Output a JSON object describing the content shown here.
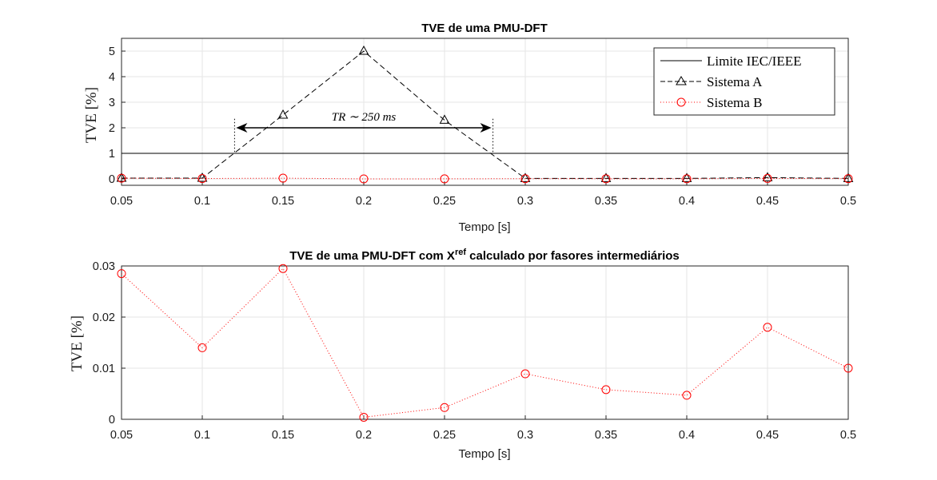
{
  "chart_data": [
    {
      "type": "line",
      "title": "TVE de uma PMU-DFT",
      "xlabel": "Tempo [s]",
      "ylabel": "TVE [%]",
      "xlim": [
        0.05,
        0.5
      ],
      "ylim": [
        -0.25,
        5.5
      ],
      "xticks": [
        "0.05",
        "0.1",
        "0.15",
        "0.2",
        "0.25",
        "0.3",
        "0.35",
        "0.4",
        "0.45",
        "0.5"
      ],
      "yticks": [
        "0",
        "1",
        "2",
        "3",
        "4",
        "5"
      ],
      "grid": true,
      "legend_position": "top-right",
      "series": [
        {
          "name": "Limite IEC/IEEE",
          "style": "solid",
          "color": "#000000",
          "x": [
            0.05,
            0.5
          ],
          "y": [
            1,
            1
          ]
        },
        {
          "name": "Sistema A",
          "style": "dashed",
          "marker": "triangle",
          "color": "#000000",
          "x": [
            0.05,
            0.1,
            0.15,
            0.2,
            0.25,
            0.3,
            0.35,
            0.4,
            0.45,
            0.5
          ],
          "y": [
            0.03,
            0.03,
            2.5,
            5.0,
            2.3,
            0.02,
            0.02,
            0.02,
            0.05,
            0.02
          ]
        },
        {
          "name": "Sistema B",
          "style": "dotted",
          "marker": "circle",
          "color": "#ff0000",
          "x": [
            0.05,
            0.1,
            0.15,
            0.2,
            0.25,
            0.3,
            0.35,
            0.4,
            0.45,
            0.5
          ],
          "y": [
            0.0285,
            0.014,
            0.0295,
            0.0004,
            0.0023,
            0.0089,
            0.0058,
            0.0047,
            0.018,
            0.01
          ]
        }
      ],
      "annotation": {
        "text": "TR ∼ 250 ms",
        "x_start": 0.12,
        "x_end": 0.28,
        "y": 2.0
      }
    },
    {
      "type": "line",
      "title": "TVE de uma PMU-DFT com X",
      "title_sup": "ref",
      "title_suffix": " calculado por fasores intermediários",
      "xlabel": "Tempo [s]",
      "ylabel": "TVE [%]",
      "xlim": [
        0.05,
        0.5
      ],
      "ylim": [
        0,
        0.03
      ],
      "xticks": [
        "0.05",
        "0.1",
        "0.15",
        "0.2",
        "0.25",
        "0.3",
        "0.35",
        "0.4",
        "0.45",
        "0.5"
      ],
      "yticks": [
        "0",
        "0.01",
        "0.02",
        "0.03"
      ],
      "grid": true,
      "series": [
        {
          "style": "dotted",
          "marker": "circle",
          "color": "#ff0000",
          "x": [
            0.05,
            0.1,
            0.15,
            0.2,
            0.25,
            0.3,
            0.35,
            0.4,
            0.45,
            0.5
          ],
          "y": [
            0.0285,
            0.014,
            0.0295,
            0.0004,
            0.0023,
            0.0089,
            0.0058,
            0.0047,
            0.018,
            0.01
          ]
        }
      ]
    }
  ]
}
